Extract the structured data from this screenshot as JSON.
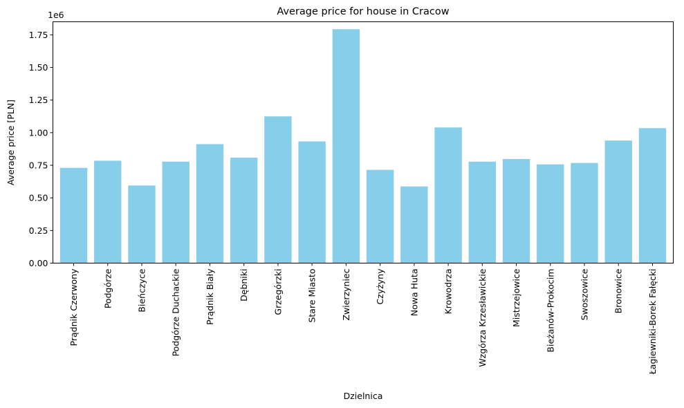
{
  "chart_data": {
    "type": "bar",
    "title": "Average price for house in Cracow",
    "xlabel": "Dzielnica",
    "ylabel": "Average price [PLN]",
    "offset_label": "1e6",
    "scale": 1000000,
    "ylim": [
      0,
      1.85
    ],
    "yticks": [
      0.0,
      0.25,
      0.5,
      0.75,
      1.0,
      1.25,
      1.5,
      1.75
    ],
    "ytick_labels": [
      "0.00",
      "0.25",
      "0.50",
      "0.75",
      "1.00",
      "1.25",
      "1.50",
      "1.75"
    ],
    "grid": false,
    "bar_color": "#87ceeb",
    "categories": [
      "Prądnik Czerwony",
      "Podgórze",
      "Bieńczyce",
      "Podgórze Duchackie",
      "Prądnik Biały",
      "Dębniki",
      "Grzegórzki",
      "Stare Miasto",
      "Zwierzyniec",
      "Czyżyny",
      "Nowa Huta",
      "Krowodrza",
      "Wzgórza Krzesławickie",
      "Mistrzejowice",
      "Bieżanów-Prokocim",
      "Swoszowice",
      "Bronowice",
      "Łagiewniki-Borek Fałęcki"
    ],
    "values": [
      730000,
      785000,
      595000,
      778000,
      912000,
      808000,
      1125000,
      933000,
      1793000,
      715000,
      588000,
      1040000,
      778000,
      798000,
      757000,
      768000,
      940000,
      1035000
    ]
  }
}
